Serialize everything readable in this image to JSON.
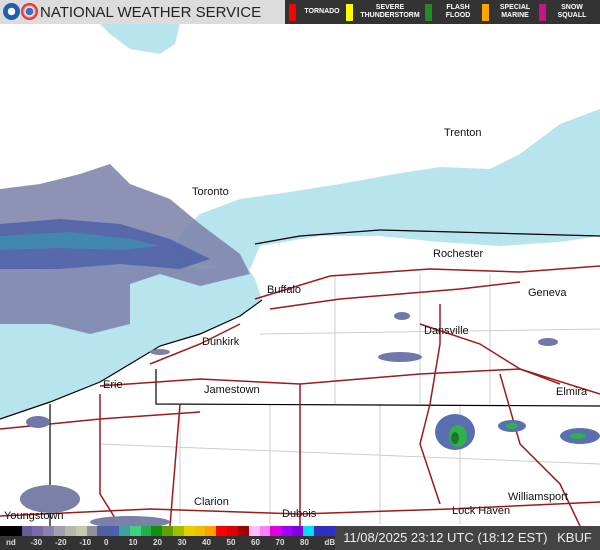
{
  "header": {
    "title": "NATIONAL WEATHER SERVICE",
    "warnings": [
      {
        "label": "TORNADO",
        "color": "#ff0000"
      },
      {
        "label": "SEVERE THUNDERSTORM",
        "color": "#ffff00"
      },
      {
        "label": "FLASH FLOOD",
        "color": "#228b22"
      },
      {
        "label": "SPECIAL MARINE",
        "color": "#ffa500"
      },
      {
        "label": "SNOW SQUALL",
        "color": "#c71585"
      }
    ]
  },
  "cities": [
    "Trenton",
    "Toronto",
    "Rochester",
    "Buffalo",
    "Geneva",
    "Dunkirk",
    "Dansville",
    "Erie",
    "Jamestown",
    "Elmira",
    "Clarion",
    "Dubois",
    "Williamsport",
    "Lock Haven",
    "Youngstown"
  ],
  "colors": {
    "lake": "#b8e4ee",
    "road": "#9b1b1b",
    "radar_light": "#6f78a8",
    "radar_mid": "#4a5fa8",
    "radar_green": "#2fb24a"
  },
  "scale": {
    "ticks": [
      "nd",
      "-30",
      "-20",
      "-10",
      "0",
      "10",
      "20",
      "30",
      "40",
      "50",
      "60",
      "70",
      "80",
      "dBZ"
    ]
  },
  "footer": {
    "timestamp": "11/08/2025 23:12 UTC (18:12 EST)",
    "station": "KBUF"
  }
}
